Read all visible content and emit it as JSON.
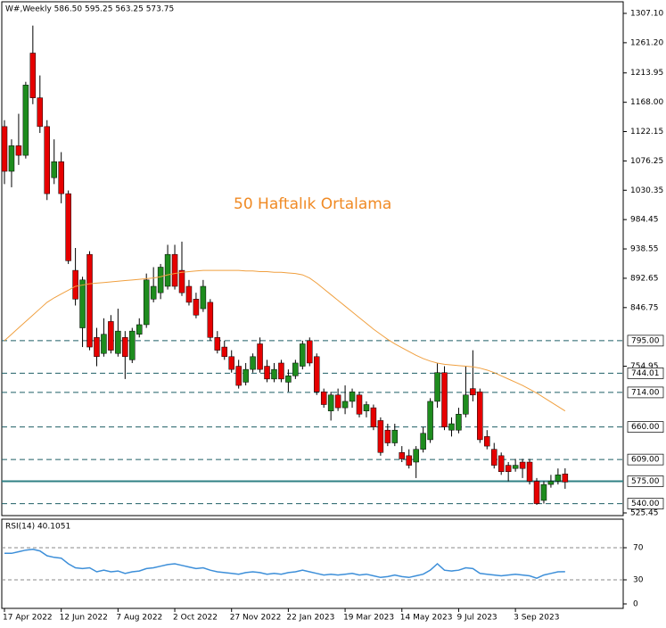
{
  "chart_data": [
    {
      "type": "candlestick",
      "title": "W#,Weekly  586.50 595.25 563.25 573.75",
      "annotation": "50 Haftalık Ortalama",
      "annotation_color": "#f08a24",
      "categories": [
        "17 Apr 2022",
        null,
        null,
        null,
        null,
        null,
        null,
        null,
        "12 Jun 2022",
        null,
        null,
        null,
        null,
        null,
        null,
        null,
        "7 Aug 2022",
        null,
        null,
        null,
        null,
        null,
        null,
        null,
        "2 Oct 2022",
        null,
        null,
        null,
        null,
        null,
        null,
        null,
        "27 Nov 2022",
        null,
        null,
        null,
        null,
        null,
        null,
        null,
        "22 Jan 2023",
        null,
        null,
        null,
        null,
        null,
        null,
        null,
        "19 Mar 2023",
        null,
        null,
        null,
        null,
        null,
        null,
        null,
        "14 May 2023",
        null,
        null,
        null,
        null,
        null,
        null,
        null,
        "9 Jul 2023",
        null,
        null,
        null,
        null,
        null,
        null,
        null,
        "3 Sep 2023",
        null,
        null,
        null,
        null,
        null,
        null,
        null
      ],
      "open": [
        1130,
        1060,
        1100,
        1085,
        1245,
        1175,
        1130,
        1050,
        1075,
        1025,
        905,
        815,
        930,
        800,
        775,
        825,
        775,
        800,
        765,
        805,
        820,
        860,
        870,
        880,
        930,
        905,
        880,
        860,
        845,
        855,
        800,
        785,
        770,
        755,
        730,
        750,
        790,
        755,
        735,
        760,
        730,
        740,
        755,
        795,
        770,
        715,
        685,
        710,
        690,
        700,
        710,
        685,
        690,
        670,
        655,
        635,
        620,
        615,
        605,
        625,
        640,
        700,
        745,
        655,
        655,
        680,
        720,
        715,
        645,
        625,
        615,
        600,
        595,
        605,
        605,
        575,
        545,
        570,
        575,
        586.5
      ],
      "high": [
        1140,
        1110,
        1150,
        1200,
        1288,
        1210,
        1140,
        1110,
        1090,
        1030,
        940,
        895,
        935,
        815,
        830,
        835,
        845,
        810,
        815,
        830,
        900,
        910,
        915,
        945,
        945,
        950,
        890,
        870,
        890,
        860,
        810,
        795,
        780,
        765,
        760,
        775,
        800,
        765,
        760,
        765,
        750,
        765,
        795,
        800,
        775,
        720,
        715,
        720,
        725,
        720,
        715,
        700,
        695,
        675,
        665,
        665,
        630,
        625,
        630,
        660,
        705,
        760,
        755,
        675,
        690,
        755,
        780,
        720,
        655,
        635,
        620,
        605,
        610,
        610,
        610,
        580,
        575,
        585,
        595,
        595.25
      ],
      "low": [
        1040,
        1035,
        1070,
        1080,
        1165,
        1120,
        1015,
        1040,
        1010,
        915,
        850,
        785,
        780,
        755,
        770,
        775,
        770,
        735,
        760,
        800,
        815,
        855,
        860,
        875,
        875,
        865,
        850,
        830,
        840,
        795,
        775,
        765,
        745,
        720,
        725,
        745,
        745,
        730,
        730,
        730,
        715,
        735,
        750,
        755,
        710,
        690,
        670,
        685,
        680,
        690,
        675,
        675,
        655,
        615,
        630,
        630,
        605,
        595,
        580,
        620,
        635,
        690,
        655,
        645,
        650,
        675,
        700,
        635,
        625,
        595,
        585,
        575,
        590,
        580,
        570,
        538,
        540,
        565,
        570,
        563.25
      ],
      "close": [
        1060,
        1100,
        1085,
        1195,
        1175,
        1130,
        1025,
        1075,
        1025,
        920,
        860,
        890,
        785,
        770,
        805,
        780,
        810,
        770,
        810,
        820,
        890,
        880,
        910,
        930,
        880,
        870,
        855,
        835,
        880,
        800,
        780,
        770,
        750,
        725,
        750,
        770,
        750,
        735,
        750,
        735,
        740,
        760,
        790,
        760,
        715,
        695,
        710,
        690,
        700,
        715,
        680,
        695,
        660,
        620,
        635,
        655,
        610,
        600,
        625,
        650,
        700,
        745,
        660,
        665,
        680,
        710,
        710,
        640,
        630,
        600,
        590,
        590,
        600,
        595,
        575,
        540,
        570,
        575,
        585,
        573.75
      ],
      "up_color": "#1e8c1e",
      "down_color": "#e60000",
      "wick_color": "#000000",
      "moving_average": {
        "color": "#f0a040",
        "values": [
          795,
          805,
          815,
          825,
          835,
          845,
          855,
          862,
          868,
          874,
          880,
          882,
          884,
          885,
          886,
          887,
          888,
          889,
          890,
          891,
          892,
          893,
          895,
          898,
          900,
          902,
          903,
          904,
          905,
          905,
          905,
          905,
          905,
          905,
          904,
          904,
          903,
          903,
          902,
          902,
          901,
          900,
          898,
          893,
          885,
          876,
          867,
          858,
          849,
          840,
          831,
          822,
          813,
          805,
          797,
          790,
          784,
          778,
          772,
          767,
          763,
          760,
          758,
          757,
          756,
          755,
          754,
          752,
          749,
          745,
          740,
          735,
          730,
          725,
          719,
          713,
          706,
          699,
          692,
          685
        ]
      },
      "levels": [
        {
          "value": 795,
          "label": "795.00"
        },
        {
          "value": 744.01,
          "label": "744.01"
        },
        {
          "value": 714,
          "label": "714.00"
        },
        {
          "value": 660,
          "label": "660.00"
        },
        {
          "value": 609,
          "label": "609.00"
        },
        {
          "value": 575,
          "label": "575.00"
        },
        {
          "value": 540,
          "label": "540.00"
        }
      ],
      "level_color": "#1f5f66",
      "highlight_level_color": "#2f8085",
      "ylim": [
        525.45,
        1307.1
      ],
      "yticks": [
        {
          "value": 1307.1,
          "label": "1307.10"
        },
        {
          "value": 1261.2,
          "label": "1261.20"
        },
        1213.95,
        {
          "value": 1168,
          "label": "1168.00"
        },
        1122.15,
        1076.25,
        1030.35,
        984.45,
        938.55,
        892.65,
        846.75,
        754.95,
        525.45
      ]
    },
    {
      "type": "line",
      "title": "RSI(14) 40.1051",
      "color": "#3d8fd9",
      "values": [
        63,
        63,
        65,
        67,
        68,
        66,
        60,
        58,
        57,
        50,
        45,
        44,
        45,
        40,
        42,
        40,
        41,
        38,
        40,
        41,
        44,
        45,
        47,
        49,
        50,
        48,
        46,
        44,
        45,
        42,
        40,
        39,
        38,
        37,
        39,
        40,
        39,
        37,
        38,
        37,
        39,
        40,
        42,
        40,
        38,
        36,
        37,
        36,
        37,
        38,
        36,
        37,
        35,
        33,
        34,
        36,
        34,
        33,
        35,
        37,
        42,
        50,
        42,
        41,
        42,
        45,
        44,
        38,
        37,
        36,
        35,
        36,
        37,
        36,
        35,
        32,
        36,
        38,
        40,
        40.1051
      ],
      "ylim": [
        0,
        100
      ],
      "yticks": [
        70,
        30,
        0
      ],
      "dashed_levels": [
        70,
        30
      ]
    }
  ]
}
